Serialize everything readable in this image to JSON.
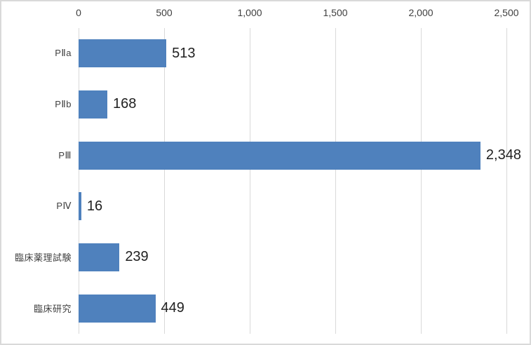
{
  "chart_data": {
    "type": "bar",
    "orientation": "horizontal",
    "title": "",
    "xlabel": "",
    "ylabel": "",
    "categories": [
      "PⅡa",
      "PⅡb",
      "PⅢ",
      "PⅣ",
      "臨床薬理試験",
      "臨床研究"
    ],
    "values": [
      513,
      168,
      2348,
      16,
      239,
      449
    ],
    "value_labels": [
      "513",
      "168",
      "2,348",
      "16",
      "239",
      "449"
    ],
    "x_ticks": [
      {
        "value": 0,
        "label": "0"
      },
      {
        "value": 500,
        "label": "500"
      },
      {
        "value": 1000,
        "label": "1,000"
      },
      {
        "value": 1500,
        "label": "1,500"
      },
      {
        "value": 2000,
        "label": "2,000"
      },
      {
        "value": 2500,
        "label": "2,500"
      }
    ],
    "xlim": [
      0,
      2500
    ],
    "axis_position": "top",
    "grid": "vertical",
    "legend": "none",
    "bar_color": "#4F81BD",
    "gridline_color": "#D9D9D9",
    "axis_text_color": "#404040",
    "value_text_color": "#1F1F1F",
    "background_color": "#FFFFFF",
    "border_color": "#D9D9D9"
  }
}
